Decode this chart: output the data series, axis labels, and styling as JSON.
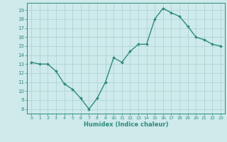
{
  "x": [
    0,
    1,
    2,
    3,
    4,
    5,
    6,
    7,
    8,
    9,
    10,
    11,
    12,
    13,
    14,
    15,
    16,
    17,
    18,
    19,
    20,
    21,
    22,
    23
  ],
  "y": [
    13.2,
    13.0,
    13.0,
    12.2,
    10.8,
    10.2,
    9.2,
    8.0,
    9.2,
    11.0,
    13.7,
    13.2,
    14.4,
    15.2,
    15.2,
    18.0,
    19.2,
    18.7,
    18.3,
    17.2,
    16.0,
    15.7,
    15.2,
    15.0
  ],
  "xlabel": "Humidex (Indice chaleur)",
  "line_color": "#2e8b7a",
  "marker_color": "#2e8b7a",
  "bg_color": "#ceeaea",
  "grid_color": "#afd4d4",
  "axis_color": "#2e8b7a",
  "tick_color": "#2e8b7a",
  "xlabel_color": "#2e8b7a",
  "ylim": [
    7.5,
    19.8
  ],
  "yticks": [
    8,
    9,
    10,
    11,
    12,
    13,
    14,
    15,
    16,
    17,
    18,
    19
  ],
  "xticks": [
    0,
    1,
    2,
    3,
    4,
    5,
    6,
    7,
    8,
    9,
    10,
    11,
    12,
    13,
    14,
    15,
    16,
    17,
    18,
    19,
    20,
    21,
    22,
    23
  ],
  "xlim": [
    -0.5,
    23.5
  ]
}
